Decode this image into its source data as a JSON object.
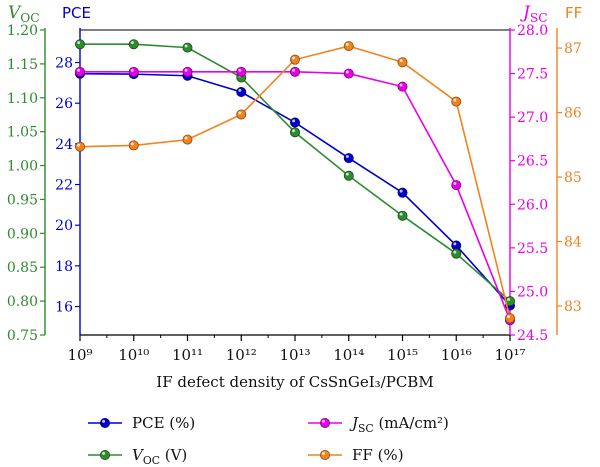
{
  "chart_data": {
    "type": "line",
    "xlabel": "IF defect density of CsSnGeI₃/PCBM",
    "x": [
      1000000000.0,
      10000000000.0,
      100000000000.0,
      1000000000000.0,
      10000000000000.0,
      100000000000000.0,
      1000000000000000.0,
      1e+16,
      1e+17
    ],
    "x_tick_labels": [
      "10⁹",
      "10¹⁰",
      "10¹¹",
      "10¹²",
      "10¹³",
      "10¹⁴",
      "10¹⁵",
      "10¹⁶",
      "10¹⁷"
    ],
    "x_scale": "log",
    "grid": false,
    "legend_position": "bottom",
    "axes": {
      "voc": {
        "label": "V_OC",
        "label_main": "V",
        "label_sub": "OC",
        "color": "#2e8b2e",
        "side": "left-outer",
        "range": [
          0.75,
          1.2
        ],
        "ticks": [
          "0.75",
          "0.80",
          "0.85",
          "0.90",
          "0.95",
          "1.00",
          "1.05",
          "1.10",
          "1.15",
          "1.20"
        ]
      },
      "pce": {
        "label": "PCE",
        "color": "#0000cc",
        "side": "left-inner",
        "range": [
          14.6,
          29.6
        ],
        "ticks": [
          "16",
          "18",
          "20",
          "22",
          "24",
          "26",
          "28"
        ]
      },
      "jsc": {
        "label": "J_SC",
        "label_main": "J",
        "label_sub": "SC",
        "color": "#e800e8",
        "side": "right-inner",
        "range": [
          24.5,
          28.0
        ],
        "ticks": [
          "24.5",
          "25.0",
          "25.5",
          "26.0",
          "26.5",
          "27.0",
          "27.5",
          "28.0"
        ]
      },
      "ff": {
        "label": "FF",
        "color": "#f0831e",
        "side": "right-outer",
        "range": [
          82.55,
          87.28
        ],
        "ticks": [
          "83",
          "84",
          "85",
          "86",
          "87"
        ]
      }
    },
    "series": [
      {
        "name": "PCE (%)",
        "legend_main": "PCE (%)",
        "axis": "pce",
        "color": "#0000cc",
        "values": [
          27.45,
          27.43,
          27.35,
          26.55,
          25.05,
          23.3,
          21.6,
          19.0,
          16.05
        ]
      },
      {
        "name": "V_OC (V)",
        "legend_main": "V",
        "legend_sub": "OC",
        "legend_tail": " (V)",
        "axis": "voc",
        "color": "#2e8b2e",
        "values": [
          1.179,
          1.179,
          1.174,
          1.13,
          1.049,
          0.985,
          0.926,
          0.87,
          0.8
        ]
      },
      {
        "name": "J_SC (mA/cm²)",
        "legend_main": "J",
        "legend_sub": "SC",
        "legend_tail": " (mA/cm²)",
        "axis": "jsc",
        "color": "#e800e8",
        "values": [
          27.52,
          27.52,
          27.52,
          27.52,
          27.52,
          27.5,
          27.35,
          26.22,
          24.67
        ]
      },
      {
        "name": "FF (%)",
        "legend_main": "FF (%)",
        "axis": "ff",
        "color": "#f0831e",
        "values": [
          85.47,
          85.49,
          85.58,
          85.97,
          86.82,
          87.03,
          86.78,
          86.17,
          82.81
        ]
      }
    ]
  }
}
